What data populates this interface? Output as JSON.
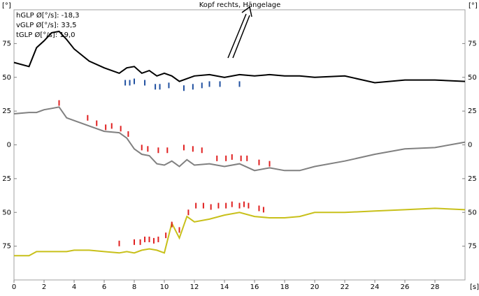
{
  "chart_data": {
    "type": "line",
    "title": "Kopf rechts, Hängelage",
    "annotations": [
      "hGLP Ø[°/s]: -18,3",
      "vGLP Ø[°/s]: 33,5",
      "tGLP Ø[°/s]: 19,0"
    ],
    "x_unit": "[s]",
    "y_unit": "[°]",
    "xlim": [
      0,
      30
    ],
    "xticks": [
      0,
      2,
      4,
      6,
      8,
      10,
      12,
      14,
      16,
      18,
      20,
      22,
      24,
      26,
      28
    ],
    "ylim": [
      -100,
      100
    ],
    "yticks": [
      75,
      50,
      25,
      0,
      {
        "value": -25,
        "label": "25"
      },
      {
        "value": -50,
        "label": "50"
      },
      {
        "value": -75,
        "label": "75"
      }
    ],
    "x": [
      0,
      1,
      1.5,
      2,
      2.5,
      3,
      3.5,
      4,
      5,
      6,
      7,
      7.5,
      8,
      8.5,
      9,
      9.5,
      10,
      10.5,
      11,
      11.5,
      12,
      13,
      14,
      15,
      16,
      17,
      18,
      19,
      20,
      22,
      24,
      26,
      28,
      30
    ],
    "series": [
      {
        "color": "#000000",
        "values": [
          61,
          58,
          72,
          77,
          83,
          84,
          78,
          71,
          62,
          57,
          53,
          57,
          58,
          53,
          55,
          51,
          53,
          51,
          47,
          49,
          51,
          52,
          50,
          52,
          51,
          52,
          51,
          51,
          50,
          51,
          46,
          48,
          48,
          47
        ]
      },
      {
        "color": "#808080",
        "values": [
          23,
          24,
          24,
          26,
          27,
          28,
          20,
          18,
          14,
          10,
          9,
          5,
          -3,
          -7,
          -8,
          -14,
          -15,
          -12,
          -16,
          -11,
          -15,
          -14,
          -16,
          -14,
          -19,
          -17,
          -19,
          -19,
          -16,
          -12,
          -7,
          -3,
          -2,
          2
        ]
      },
      {
        "color": "#c8c01a",
        "values": [
          -82,
          -82,
          -79,
          -79,
          -79,
          -79,
          -79,
          -78,
          -78,
          -79,
          -80,
          -79,
          -80,
          -78,
          -77,
          -78,
          -80,
          -58,
          -69,
          -53,
          -57,
          -55,
          -52,
          -50,
          -53,
          -54,
          -54,
          -53,
          -50,
          -50,
          -49,
          -48,
          -47,
          -48
        ]
      }
    ],
    "markers": [
      {
        "color": "#2050a0",
        "x": [
          7.4,
          7.7,
          8.0,
          8.7,
          9.4,
          9.7,
          10.3,
          11.3,
          11.9,
          12.5,
          13.0,
          13.7,
          15.0
        ],
        "y": [
          46,
          46,
          47,
          46,
          43,
          43,
          44,
          42,
          43,
          44,
          45,
          45,
          45
        ]
      },
      {
        "color": "#e02020",
        "x": [
          3.0,
          4.9,
          5.5,
          6.1,
          6.5,
          7.1,
          7.6,
          8.5,
          8.9,
          9.6,
          10.2,
          11.3,
          11.9,
          12.5,
          13.5,
          14.1,
          14.5,
          15.1,
          15.5,
          16.3,
          17.0
        ],
        "y": [
          31,
          20,
          16,
          13,
          14,
          12,
          8,
          -2,
          -3,
          -4,
          -4,
          -2,
          -3,
          -4,
          -10,
          -10,
          -9,
          -10,
          -10,
          -13,
          -14
        ]
      },
      {
        "color": "#e02020",
        "x": [
          7.0,
          8.0,
          8.4,
          8.7,
          9.0,
          9.3,
          9.6,
          10.1,
          10.5,
          11.0,
          11.6,
          12.1,
          12.6,
          13.1,
          13.6,
          14.1,
          14.5,
          15.0,
          15.3,
          15.6,
          16.3,
          16.6
        ],
        "y": [
          -73,
          -72,
          -72,
          -70,
          -70,
          -71,
          -70,
          -67,
          -59,
          -63,
          -50,
          -45,
          -45,
          -46,
          -45,
          -45,
          -44,
          -45,
          -44,
          -45,
          -47,
          -48
        ]
      }
    ]
  }
}
